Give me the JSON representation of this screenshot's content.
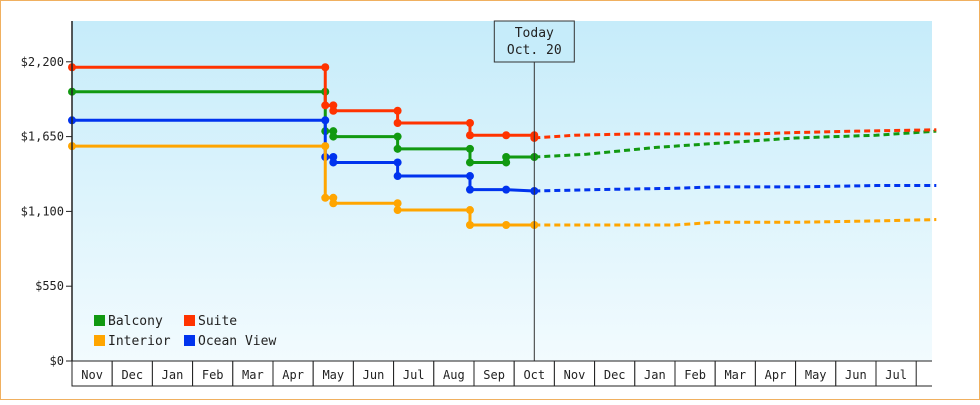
{
  "chart_data": {
    "type": "line",
    "title": "",
    "xlabel": "",
    "ylabel": "",
    "ylim": [
      0,
      2500
    ],
    "yticks": [
      0,
      550,
      1100,
      1650,
      2200
    ],
    "ytick_labels": [
      "$0",
      "$550",
      "$1,100",
      "$1,650",
      "$2,200"
    ],
    "x_months": [
      "Nov",
      "Dec",
      "Jan",
      "Feb",
      "Mar",
      "Apr",
      "May",
      "Jun",
      "Jul",
      "Aug",
      "Sep",
      "Oct",
      "Nov",
      "Dec",
      "Jan",
      "Feb",
      "Mar",
      "Apr",
      "May",
      "Jun",
      "Jul"
    ],
    "today_marker": {
      "line1": "Today",
      "line2": "Oct. 20",
      "x": 11.5
    },
    "legend": {
      "placement": "bottom-left"
    },
    "grid": false,
    "colors": {
      "Balcony": "#119911",
      "Suite": "#ff3300",
      "Interior": "#ffa500",
      "Ocean View": "#0033ee",
      "background_top": "#c6ecfa",
      "background_bottom": "#f2fbfe"
    },
    "series": [
      {
        "name": "Balcony",
        "color": "#119911",
        "history": [
          [
            0,
            1980
          ],
          [
            6.3,
            1980
          ],
          [
            6.3,
            1690
          ],
          [
            6.5,
            1690
          ],
          [
            6.5,
            1650
          ],
          [
            8.1,
            1650
          ],
          [
            8.1,
            1560
          ],
          [
            9.9,
            1560
          ],
          [
            9.9,
            1460
          ],
          [
            10.8,
            1460
          ],
          [
            10.8,
            1500
          ],
          [
            11.5,
            1500
          ]
        ],
        "markers": [
          [
            0,
            1980
          ],
          [
            6.3,
            1980
          ],
          [
            6.3,
            1690
          ],
          [
            6.5,
            1690
          ],
          [
            6.5,
            1650
          ],
          [
            8.1,
            1650
          ],
          [
            8.1,
            1560
          ],
          [
            9.9,
            1560
          ],
          [
            9.9,
            1460
          ],
          [
            10.8,
            1460
          ],
          [
            10.8,
            1500
          ],
          [
            11.5,
            1500
          ]
        ],
        "forecast": [
          [
            11.5,
            1500
          ],
          [
            12.8,
            1520
          ],
          [
            14.5,
            1570
          ],
          [
            16.0,
            1600
          ],
          [
            18.0,
            1640
          ],
          [
            20.0,
            1660
          ],
          [
            21.5,
            1690
          ]
        ]
      },
      {
        "name": "Suite",
        "color": "#ff3300",
        "history": [
          [
            0,
            2160
          ],
          [
            6.3,
            2160
          ],
          [
            6.3,
            1880
          ],
          [
            6.5,
            1880
          ],
          [
            6.5,
            1840
          ],
          [
            8.1,
            1840
          ],
          [
            8.1,
            1750
          ],
          [
            9.9,
            1750
          ],
          [
            9.9,
            1660
          ],
          [
            10.8,
            1660
          ],
          [
            11.5,
            1660
          ],
          [
            11.5,
            1640
          ]
        ],
        "markers": [
          [
            0,
            2160
          ],
          [
            6.3,
            2160
          ],
          [
            6.3,
            1880
          ],
          [
            6.5,
            1880
          ],
          [
            6.5,
            1840
          ],
          [
            8.1,
            1840
          ],
          [
            8.1,
            1750
          ],
          [
            9.9,
            1750
          ],
          [
            9.9,
            1660
          ],
          [
            10.8,
            1660
          ],
          [
            11.5,
            1660
          ],
          [
            11.5,
            1640
          ]
        ],
        "forecast": [
          [
            11.5,
            1640
          ],
          [
            12.5,
            1660
          ],
          [
            14.0,
            1670
          ],
          [
            15.5,
            1670
          ],
          [
            17.0,
            1670
          ],
          [
            18.0,
            1680
          ],
          [
            19.5,
            1690
          ],
          [
            21.5,
            1700
          ]
        ]
      },
      {
        "name": "Interior",
        "color": "#ffa500",
        "history": [
          [
            0,
            1580
          ],
          [
            6.3,
            1580
          ],
          [
            6.3,
            1200
          ],
          [
            6.5,
            1200
          ],
          [
            6.5,
            1160
          ],
          [
            8.1,
            1160
          ],
          [
            8.1,
            1110
          ],
          [
            9.9,
            1110
          ],
          [
            9.9,
            1000
          ],
          [
            10.8,
            1000
          ],
          [
            11.5,
            1000
          ]
        ],
        "markers": [
          [
            0,
            1580
          ],
          [
            6.3,
            1580
          ],
          [
            6.3,
            1200
          ],
          [
            6.5,
            1200
          ],
          [
            6.5,
            1160
          ],
          [
            8.1,
            1160
          ],
          [
            8.1,
            1110
          ],
          [
            9.9,
            1110
          ],
          [
            9.9,
            1000
          ],
          [
            10.8,
            1000
          ],
          [
            11.5,
            1000
          ]
        ],
        "forecast": [
          [
            11.5,
            1000
          ],
          [
            13.0,
            1000
          ],
          [
            15.0,
            1000
          ],
          [
            16.0,
            1020
          ],
          [
            18.0,
            1020
          ],
          [
            20.0,
            1030
          ],
          [
            21.5,
            1040
          ]
        ]
      },
      {
        "name": "Ocean View",
        "color": "#0033ee",
        "history": [
          [
            0,
            1770
          ],
          [
            6.3,
            1770
          ],
          [
            6.3,
            1500
          ],
          [
            6.5,
            1500
          ],
          [
            6.5,
            1460
          ],
          [
            8.1,
            1460
          ],
          [
            8.1,
            1360
          ],
          [
            9.9,
            1360
          ],
          [
            9.9,
            1260
          ],
          [
            10.8,
            1260
          ],
          [
            11.5,
            1250
          ]
        ],
        "markers": [
          [
            0,
            1770
          ],
          [
            6.3,
            1770
          ],
          [
            6.3,
            1500
          ],
          [
            6.5,
            1500
          ],
          [
            6.5,
            1460
          ],
          [
            8.1,
            1460
          ],
          [
            8.1,
            1360
          ],
          [
            9.9,
            1360
          ],
          [
            9.9,
            1260
          ],
          [
            10.8,
            1260
          ],
          [
            11.5,
            1250
          ]
        ],
        "forecast": [
          [
            11.5,
            1250
          ],
          [
            13.0,
            1260
          ],
          [
            15.0,
            1270
          ],
          [
            16.0,
            1280
          ],
          [
            18.0,
            1280
          ],
          [
            20.0,
            1290
          ],
          [
            21.5,
            1290
          ]
        ]
      }
    ]
  }
}
